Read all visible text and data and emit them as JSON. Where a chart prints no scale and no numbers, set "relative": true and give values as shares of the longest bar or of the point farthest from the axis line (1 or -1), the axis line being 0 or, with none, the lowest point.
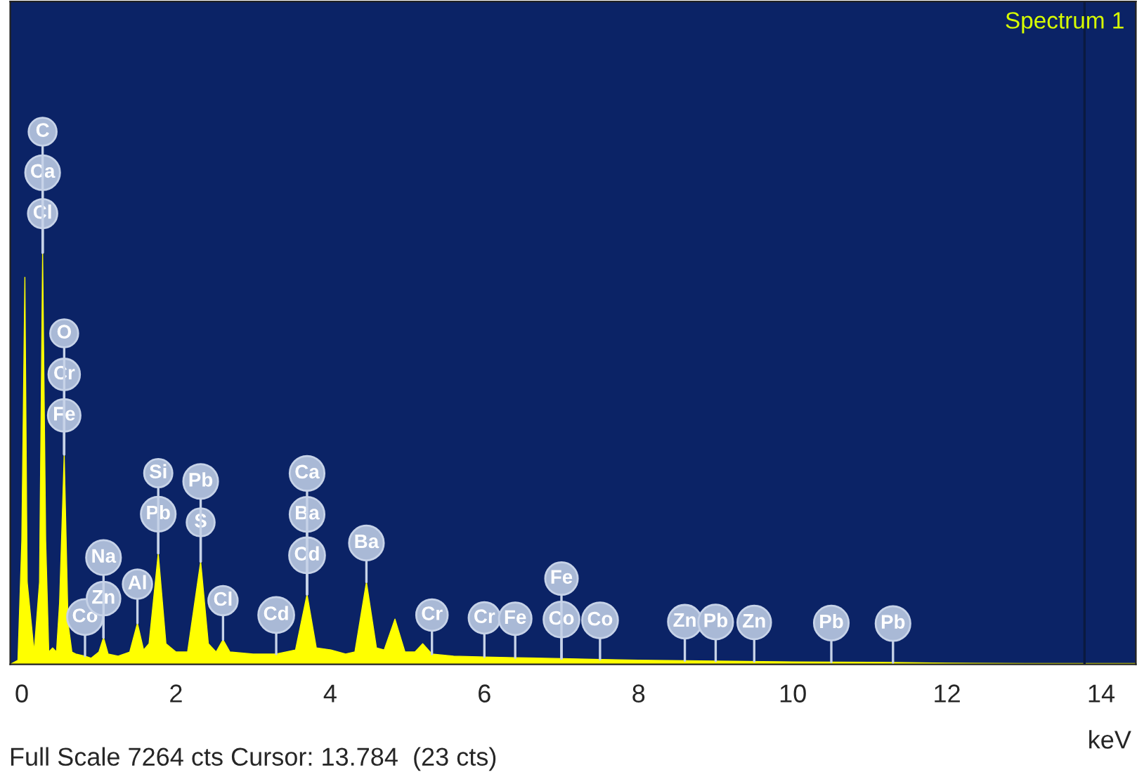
{
  "chart_data": {
    "type": "area",
    "relative": true,
    "xlabel": "keV",
    "x": [
      -0.15,
      -0.05,
      0.0,
      0.04,
      0.07,
      0.16,
      0.23,
      0.27,
      0.31,
      0.35,
      0.4,
      0.45,
      0.49,
      0.55,
      0.6,
      0.65,
      0.7,
      0.82,
      0.9,
      1.0,
      1.06,
      1.12,
      1.25,
      1.4,
      1.5,
      1.58,
      1.65,
      1.77,
      1.87,
      2.0,
      2.15,
      2.32,
      2.42,
      2.52,
      2.61,
      2.7,
      3.0,
      3.3,
      3.55,
      3.7,
      3.82,
      4.01,
      4.2,
      4.32,
      4.47,
      4.6,
      4.7,
      4.84,
      4.97,
      5.1,
      5.2,
      5.32,
      5.6,
      6.0,
      6.4,
      7.0,
      7.5,
      8.0,
      9.0,
      10.0,
      11.0,
      12.0,
      13.0,
      14.45
    ],
    "series": [
      {
        "color": "#ffff00",
        "values": [
          0,
          0.01,
          0.3,
          0.94,
          0.2,
          0.03,
          0.2,
          1.0,
          0.3,
          0.03,
          0.04,
          0.03,
          0.15,
          0.51,
          0.1,
          0.03,
          0.025,
          0.02,
          0.015,
          0.03,
          0.065,
          0.025,
          0.02,
          0.03,
          0.1,
          0.035,
          0.05,
          0.27,
          0.05,
          0.03,
          0.03,
          0.25,
          0.05,
          0.03,
          0.06,
          0.03,
          0.025,
          0.025,
          0.035,
          0.17,
          0.04,
          0.035,
          0.025,
          0.03,
          0.2,
          0.04,
          0.035,
          0.11,
          0.03,
          0.03,
          0.05,
          0.025,
          0.02,
          0.018,
          0.016,
          0.014,
          0.012,
          0.01,
          0.008,
          0.006,
          0.005,
          0.003,
          0.002,
          0.002
        ]
      }
    ],
    "xlim": [
      -0.15,
      14.45
    ],
    "xticks": [
      0,
      2,
      4,
      6,
      8,
      10,
      12,
      14
    ],
    "grid": false,
    "ref_lines": [
      {
        "axis": "x",
        "value": 13.784,
        "color": "#0a1a40"
      }
    ],
    "annotations": [
      "Spectrum 1",
      "Full Scale 7264 cts Cursor: 13.784  (23 cts)",
      {
        "text": "Cl",
        "x": 0.27,
        "y": 1.0
      },
      {
        "text": "Ca",
        "x": 0.27,
        "y": 1.0
      },
      {
        "text": "C",
        "x": 0.27,
        "y": 1.0
      },
      {
        "text": "Fe",
        "x": 0.55,
        "y": 0.51
      },
      {
        "text": "Cr",
        "x": 0.55,
        "y": 0.51
      },
      {
        "text": "O",
        "x": 0.55,
        "y": 0.51
      },
      {
        "text": "Co",
        "x": 0.82,
        "y": 0.02
      },
      {
        "text": "Zn",
        "x": 1.06,
        "y": 0.065
      },
      {
        "text": "Na",
        "x": 1.06,
        "y": 0.065
      },
      {
        "text": "Al",
        "x": 1.5,
        "y": 0.1
      },
      {
        "text": "Pb",
        "x": 1.77,
        "y": 0.27
      },
      {
        "text": "Si",
        "x": 1.77,
        "y": 0.27
      },
      {
        "text": "S",
        "x": 2.32,
        "y": 0.25
      },
      {
        "text": "Pb",
        "x": 2.32,
        "y": 0.25
      },
      {
        "text": "Cl",
        "x": 2.61,
        "y": 0.06
      },
      {
        "text": "Cd",
        "x": 3.3,
        "y": 0.025
      },
      {
        "text": "Cd",
        "x": 3.7,
        "y": 0.17
      },
      {
        "text": "Ba",
        "x": 3.7,
        "y": 0.17
      },
      {
        "text": "Ca",
        "x": 3.7,
        "y": 0.17
      },
      {
        "text": "Ba",
        "x": 4.47,
        "y": 0.2
      },
      {
        "text": "Cr",
        "x": 5.32,
        "y": 0.025
      },
      {
        "text": "Cr",
        "x": 6.0,
        "y": 0.018
      },
      {
        "text": "Fe",
        "x": 6.4,
        "y": 0.016
      },
      {
        "text": "Co",
        "x": 7.0,
        "y": 0.014
      },
      {
        "text": "Fe",
        "x": 7.0,
        "y": 0.014
      },
      {
        "text": "Co",
        "x": 7.5,
        "y": 0.012
      },
      {
        "text": "Zn",
        "x": 8.6,
        "y": 0.0088
      },
      {
        "text": "Pb",
        "x": 9.0,
        "y": 0.008
      },
      {
        "text": "Zn",
        "x": 9.5,
        "y": 0.007
      },
      {
        "text": "Pb",
        "x": 10.5,
        "y": 0.0055
      },
      {
        "text": "Pb",
        "x": 11.3,
        "y": 0.0044
      }
    ]
  }
}
